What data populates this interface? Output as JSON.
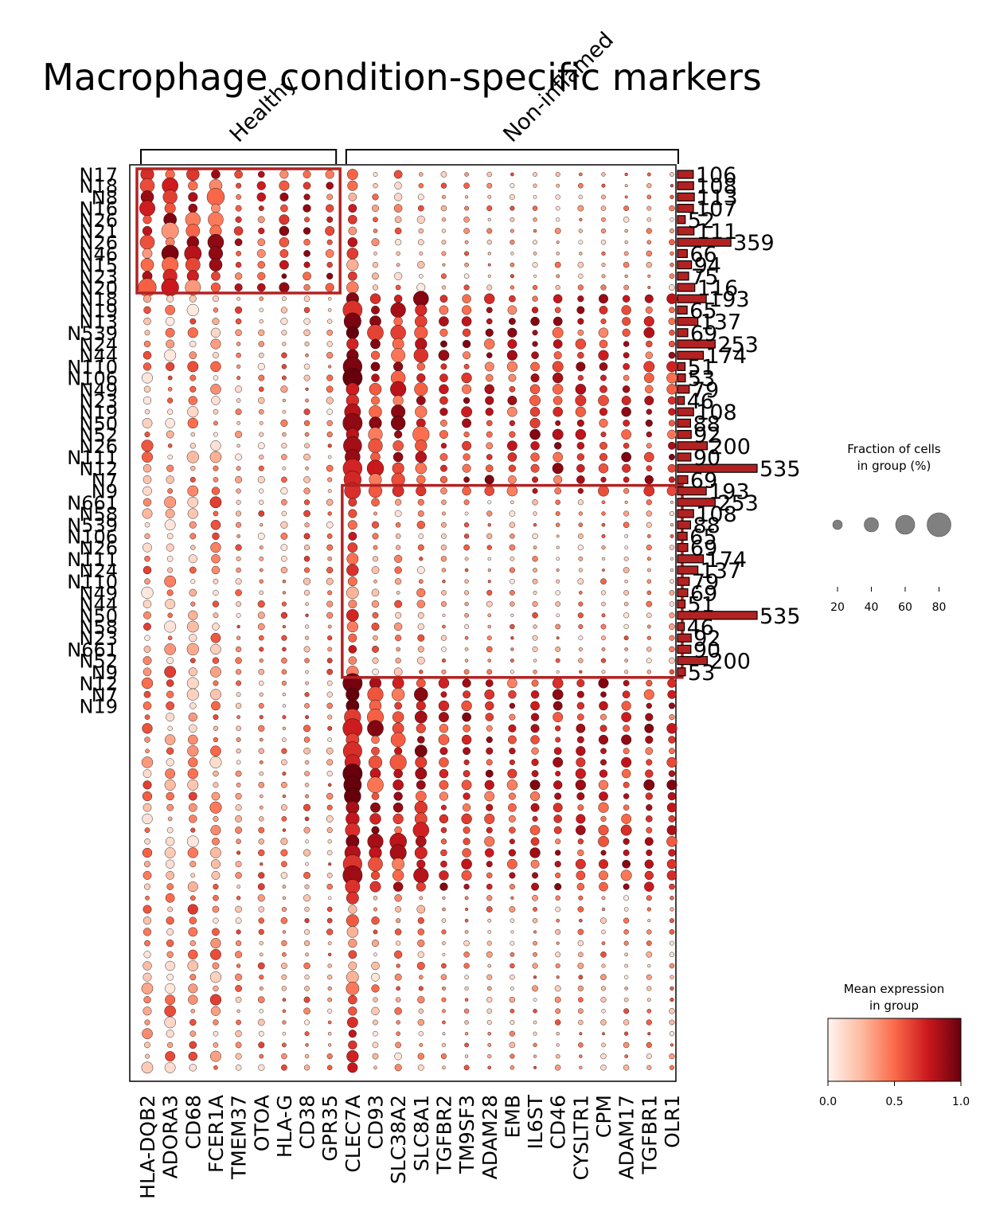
{
  "chart_data": {
    "type": "dotplot",
    "title": "Macrophage condition-specific markers",
    "groups": [
      {
        "name": "Healthy",
        "genes": [
          "HLA-DQB2",
          "ADORA3",
          "CD68",
          "FCER1A",
          "TMEM37",
          "OTOA",
          "HLA-G",
          "CD38",
          "GPR35"
        ]
      },
      {
        "name": "Non-inflamed",
        "genes": [
          "CLEC7A",
          "CD93",
          "SLC38A2",
          "SLC8A1",
          "TGFBR2",
          "TM9SF3",
          "ADAM28",
          "EMB",
          "IL6ST",
          "CD46",
          "CYSLTR1",
          "CPM",
          "ADAM17",
          "TGFBR1",
          "OLR1"
        ]
      }
    ],
    "genes": [
      "HLA-DQB2",
      "ADORA3",
      "CD68",
      "FCER1A",
      "TMEM37",
      "OTOA",
      "HLA-G",
      "CD38",
      "GPR35",
      "CLEC7A",
      "CD93",
      "SLC38A2",
      "SLC8A1",
      "TGFBR2",
      "TM9SF3",
      "ADAM28",
      "EMB",
      "IL6ST",
      "CD46",
      "CYSLTR1",
      "CPM",
      "ADAM17",
      "TGFBR1",
      "OLR1"
    ],
    "rows": [
      {
        "label": "N17",
        "count": 106
      },
      {
        "label": "N18",
        "count": 108
      },
      {
        "label": "N8",
        "count": 113
      },
      {
        "label": "N16",
        "count": 107
      },
      {
        "label": "N26",
        "count": 52
      },
      {
        "label": "N21",
        "count": 111
      },
      {
        "label": "N26",
        "count": 359
      },
      {
        "label": "N46",
        "count": 66
      },
      {
        "label": "N15",
        "count": 94
      },
      {
        "label": "N23",
        "count": 75
      },
      {
        "label": "N20",
        "count": 116
      },
      {
        "label": "N18",
        "count": 193
      },
      {
        "label": "N19",
        "count": 65
      },
      {
        "label": "N13",
        "count": 137
      },
      {
        "label": "N539",
        "count": 69
      },
      {
        "label": "N24",
        "count": 253
      },
      {
        "label": "N44",
        "count": 174
      },
      {
        "label": "N110",
        "count": 51
      },
      {
        "label": "N106",
        "count": 53
      },
      {
        "label": "N49",
        "count": 79
      },
      {
        "label": "N23",
        "count": 46
      },
      {
        "label": "N19",
        "count": 108
      },
      {
        "label": "N50",
        "count": 88
      },
      {
        "label": "N52",
        "count": 92
      },
      {
        "label": "N26",
        "count": 200
      },
      {
        "label": "N111",
        "count": 90
      },
      {
        "label": "N12",
        "count": 535
      },
      {
        "label": "N7",
        "count": 69
      },
      {
        "label": "N9",
        "count": 193
      },
      {
        "label": "N661",
        "count": 253
      },
      {
        "label": "N58",
        "count": 108
      },
      {
        "label": "N539",
        "count": 88
      },
      {
        "label": "N106",
        "count": 65
      },
      {
        "label": "N26",
        "count": 69
      },
      {
        "label": "N111",
        "count": 174
      },
      {
        "label": "N24",
        "count": 137
      },
      {
        "label": "N110",
        "count": 79
      },
      {
        "label": "N49",
        "count": 69
      },
      {
        "label": "N44",
        "count": 51
      },
      {
        "label": "N50",
        "count": 535
      },
      {
        "label": "N58",
        "count": 46
      },
      {
        "label": "N23",
        "count": 92
      },
      {
        "label": "N661",
        "count": 90
      },
      {
        "label": "N52",
        "count": 200
      },
      {
        "label": "N9",
        "count": 53
      },
      {
        "label": "N12",
        "count": null
      },
      {
        "label": "N7",
        "count": null
      },
      {
        "label": "N19",
        "count": null
      }
    ],
    "n_rows_in_plot": 80,
    "highlight_boxes": [
      {
        "rows": [
          0,
          10
        ],
        "genes": [
          "HLA-DQB2",
          "GPR35"
        ]
      },
      {
        "rows": [
          28,
          44
        ],
        "genes": [
          "CLEC7A",
          "OLR1"
        ]
      }
    ],
    "size_legend": {
      "title": "Fraction of cells\nin group (%)",
      "ticks": [
        20,
        40,
        60,
        80
      ]
    },
    "color_legend": {
      "title": "Mean expression\nin group",
      "ticks": [
        "0.0",
        "0.5",
        "1.0"
      ],
      "range": [
        0,
        1
      ],
      "colormap": "Reds"
    },
    "colors": {
      "highlight": "#b22222",
      "bar": "#b22222",
      "dot_low": "#fff5f0",
      "dot_high": "#67000d"
    }
  },
  "count_labels": [
    "106",
    "108",
    "113",
    "107",
    "52",
    "111",
    "359",
    "66",
    "94",
    "75",
    "116",
    "193",
    "65",
    "137",
    "69",
    "253",
    "174",
    "51",
    "53",
    "79",
    "46",
    "108",
    "88",
    "92",
    "200",
    "90",
    "535",
    "69",
    "193",
    "253",
    "108",
    "88",
    "65",
    "69",
    "174",
    "137",
    "79",
    "69",
    "51",
    "535",
    "46",
    "92",
    "90",
    "200",
    "53"
  ],
  "legend": {
    "size_title_1": "Fraction of cells",
    "size_title_2": "in group (%)",
    "color_title_1": "Mean expression",
    "color_title_2": "in group"
  }
}
